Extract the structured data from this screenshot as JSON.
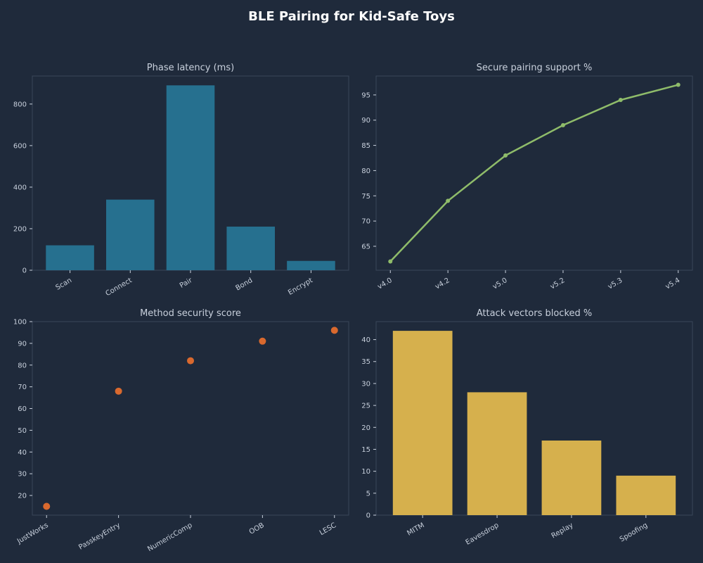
{
  "title": "BLE Pairing for Kid-Safe Toys",
  "chart_data": [
    {
      "type": "bar",
      "title": "Phase latency (ms)",
      "categories": [
        "Scan",
        "Connect",
        "Pair",
        "Bond",
        "Encrypt"
      ],
      "values": [
        120,
        340,
        890,
        210,
        45
      ],
      "ylim": [
        0,
        935
      ],
      "yticks": [
        0,
        200,
        400,
        600,
        800
      ],
      "color": "#26708f",
      "grid": false
    },
    {
      "type": "line",
      "title": "Secure pairing support %",
      "categories": [
        "v4.0",
        "v4.2",
        "v5.0",
        "v5.2",
        "v5.3",
        "v5.4"
      ],
      "values": [
        62,
        74,
        83,
        89,
        94,
        97
      ],
      "ylim": [
        60.25,
        98.75
      ],
      "yticks": [
        65,
        70,
        75,
        80,
        85,
        90,
        95
      ],
      "color": "#8fbc6a",
      "grid": false
    },
    {
      "type": "scatter",
      "title": "Method security score",
      "categories": [
        "JustWorks",
        "PasskeyEntry",
        "NumericComp",
        "OOB",
        "LESC"
      ],
      "values": [
        15,
        68,
        82,
        91,
        96
      ],
      "ylim": [
        10.95,
        100
      ],
      "yticks": [
        20,
        30,
        40,
        50,
        60,
        70,
        80,
        90,
        100
      ],
      "color": "#d9692e",
      "grid": false
    },
    {
      "type": "bar",
      "title": "Attack vectors blocked %",
      "categories": [
        "MITM",
        "Eavesdrop",
        "Replay",
        "Spoofing"
      ],
      "values": [
        42,
        28,
        17,
        9
      ],
      "ylim": [
        0,
        44.1
      ],
      "yticks": [
        0,
        5,
        10,
        15,
        20,
        25,
        30,
        35,
        40
      ],
      "color": "#d6b04d",
      "grid": false
    }
  ]
}
